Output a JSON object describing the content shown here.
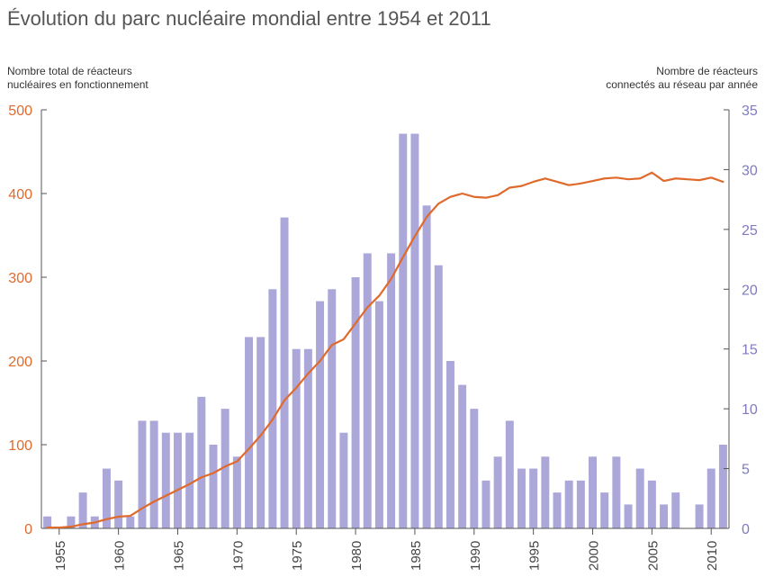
{
  "title": "Évolution du parc nucléaire mondial entre 1954 et 2011",
  "axis_captions": {
    "left_line1": "Nombre total de réacteurs",
    "left_line2": "nucléaires en fonctionnement",
    "right_line1": "Nombre de réacteurs",
    "right_line2": "connectés au réseau par année"
  },
  "colors": {
    "bars": "#aba7d8",
    "line": "#e06a2c",
    "left_axis_text": "#e06a2c",
    "right_axis_text": "#7f7bbf",
    "axis": "#555555"
  },
  "chart_data": {
    "type": "bar+line",
    "x_labels": [
      "1955",
      "1960",
      "1965",
      "1970",
      "1975",
      "1980",
      "1985",
      "1990",
      "1995",
      "2000",
      "2005",
      "2010"
    ],
    "left_axis": {
      "ylim": [
        0,
        500
      ],
      "ticks": [
        "0",
        "100",
        "200",
        "300",
        "400",
        "500"
      ]
    },
    "right_axis": {
      "ylim": [
        0,
        35
      ],
      "ticks": [
        "0",
        "5",
        "10",
        "15",
        "20",
        "25",
        "30",
        "35"
      ]
    },
    "grid": false,
    "years": [
      1954,
      1955,
      1956,
      1957,
      1958,
      1959,
      1960,
      1961,
      1962,
      1963,
      1964,
      1965,
      1966,
      1967,
      1968,
      1969,
      1970,
      1971,
      1972,
      1973,
      1974,
      1975,
      1976,
      1977,
      1978,
      1979,
      1980,
      1981,
      1982,
      1983,
      1984,
      1985,
      1986,
      1987,
      1988,
      1989,
      1990,
      1991,
      1992,
      1993,
      1994,
      1995,
      1996,
      1997,
      1998,
      1999,
      2000,
      2001,
      2002,
      2003,
      2004,
      2005,
      2006,
      2007,
      2008,
      2009,
      2010,
      2011
    ],
    "bar_series": {
      "axis": "right",
      "values": [
        1,
        0,
        1,
        3,
        1,
        5,
        4,
        1,
        9,
        9,
        8,
        8,
        8,
        11,
        7,
        10,
        6,
        16,
        16,
        20,
        26,
        15,
        15,
        19,
        20,
        8,
        21,
        23,
        19,
        23,
        33,
        33,
        27,
        22,
        14,
        12,
        10,
        4,
        6,
        9,
        5,
        5,
        6,
        3,
        4,
        4,
        6,
        3,
        6,
        2,
        5,
        4,
        2,
        3,
        0,
        2,
        5,
        7
      ]
    },
    "line_series": {
      "axis": "left",
      "values": [
        1,
        1,
        2,
        5,
        7,
        11,
        14,
        15,
        24,
        32,
        39,
        46,
        53,
        61,
        66,
        74,
        80,
        95,
        111,
        130,
        153,
        168,
        185,
        200,
        219,
        226,
        245,
        264,
        278,
        298,
        324,
        349,
        372,
        388,
        396,
        400,
        396,
        395,
        398,
        407,
        409,
        414,
        418,
        414,
        410,
        412,
        415,
        418,
        419,
        417,
        418,
        425,
        415,
        418,
        417,
        416,
        419,
        414
      ]
    }
  }
}
